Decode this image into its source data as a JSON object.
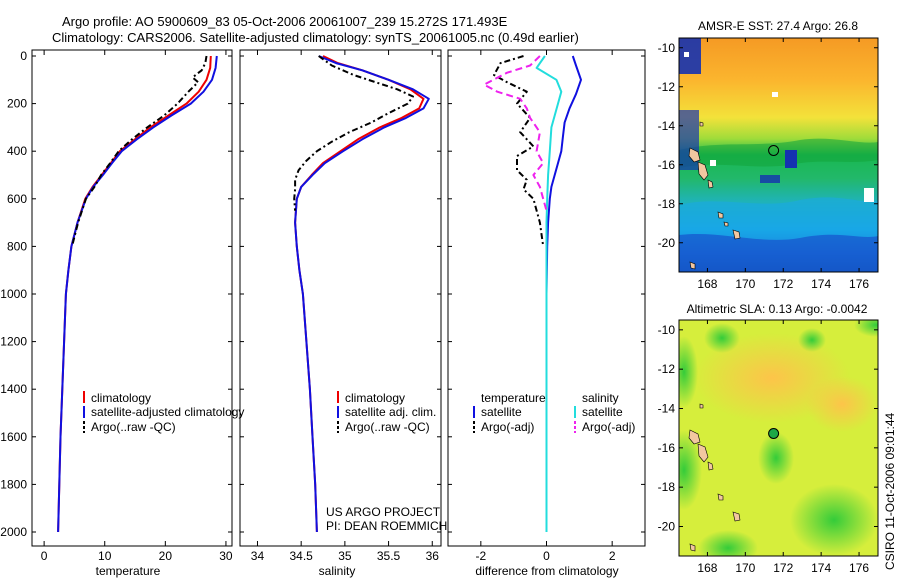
{
  "titles": {
    "line1": "Argo profile: AO 5900609_83 05-Oct-2006 20061007_239 15.272S 171.493E",
    "line2": "Climatology: CARS2006. Satellite-adjusted climatology: synTS_20061005.nc (0.49d earlier)"
  },
  "side_label": "CSIRO 11-Oct-2006 09:01:44",
  "project": {
    "line1": "US ARGO PROJECT",
    "line2": "PI: DEAN ROEMMICH"
  },
  "colors": {
    "red": "#ee0000",
    "blue": "#1010e0",
    "black": "#000000",
    "cyan": "#22dddd",
    "magenta": "#ee22ee"
  },
  "profiles": {
    "depth_ticks": [
      "0",
      "200",
      "400",
      "600",
      "800",
      "1000",
      "1200",
      "1400",
      "1600",
      "1800",
      "2000"
    ],
    "temperature": {
      "xlabel": "temperature",
      "xlim": [
        -2,
        31
      ],
      "xticks": [
        "0",
        "10",
        "20",
        "30"
      ],
      "legend": [
        "climatology",
        "satellite-adjusted climatology",
        "Argo(..raw -QC)"
      ],
      "series": [
        {
          "name": "climatology",
          "color": "#ee0000",
          "dash": "",
          "points": [
            [
              27.5,
              0
            ],
            [
              27.4,
              50
            ],
            [
              26.8,
              100
            ],
            [
              25.5,
              150
            ],
            [
              23.5,
              200
            ],
            [
              20.5,
              250
            ],
            [
              17.5,
              300
            ],
            [
              15,
              350
            ],
            [
              12.5,
              400
            ],
            [
              11,
              450
            ],
            [
              9.5,
              500
            ],
            [
              8,
              550
            ],
            [
              6.8,
              600
            ],
            [
              5.5,
              700
            ],
            [
              4.5,
              800
            ],
            [
              4,
              900
            ],
            [
              3.6,
              1000
            ],
            [
              3.3,
              1200
            ],
            [
              3,
              1400
            ],
            [
              2.7,
              1600
            ],
            [
              2.5,
              1800
            ],
            [
              2.3,
              2000
            ]
          ]
        },
        {
          "name": "satellite",
          "color": "#1010e0",
          "dash": "",
          "points": [
            [
              28.5,
              0
            ],
            [
              28.3,
              50
            ],
            [
              27.7,
              100
            ],
            [
              26.3,
              150
            ],
            [
              24.2,
              200
            ],
            [
              21,
              250
            ],
            [
              18,
              300
            ],
            [
              15.3,
              350
            ],
            [
              12.8,
              400
            ],
            [
              11.2,
              450
            ],
            [
              9.7,
              500
            ],
            [
              8.1,
              550
            ],
            [
              6.9,
              600
            ],
            [
              5.5,
              700
            ],
            [
              4.5,
              800
            ],
            [
              4,
              900
            ],
            [
              3.6,
              1000
            ],
            [
              3.3,
              1200
            ],
            [
              3,
              1400
            ],
            [
              2.7,
              1600
            ],
            [
              2.5,
              1800
            ],
            [
              2.3,
              2000
            ]
          ]
        },
        {
          "name": "argo",
          "color": "#000000",
          "dash": "6,3,2,3",
          "points": [
            [
              26.8,
              0
            ],
            [
              26.6,
              30
            ],
            [
              26,
              60
            ],
            [
              24.5,
              90
            ],
            [
              25.4,
              110
            ],
            [
              23.8,
              150
            ],
            [
              22,
              200
            ],
            [
              19.8,
              250
            ],
            [
              17,
              300
            ],
            [
              14.5,
              350
            ],
            [
              12.3,
              400
            ],
            [
              10.9,
              450
            ],
            [
              9.4,
              500
            ],
            [
              8.3,
              550
            ],
            [
              6.9,
              600
            ],
            [
              5.6,
              700
            ],
            [
              4.6,
              800
            ]
          ]
        }
      ]
    },
    "salinity": {
      "xlabel": "salinity",
      "xlim": [
        33.8,
        36.1
      ],
      "xticks": [
        "34",
        "34.5",
        "35",
        "35.5",
        "36"
      ],
      "legend": [
        "climatology",
        "satellite adj. clim.",
        "Argo(..raw -QC)"
      ],
      "series": [
        {
          "name": "climatology",
          "color": "#ee0000",
          "dash": "",
          "points": [
            [
              34.75,
              0
            ],
            [
              34.92,
              30
            ],
            [
              35.2,
              60
            ],
            [
              35.5,
              100
            ],
            [
              35.75,
              140
            ],
            [
              35.9,
              180
            ],
            [
              35.85,
              220
            ],
            [
              35.65,
              260
            ],
            [
              35.4,
              300
            ],
            [
              35.15,
              350
            ],
            [
              34.95,
              400
            ],
            [
              34.75,
              450
            ],
            [
              34.62,
              500
            ],
            [
              34.5,
              550
            ],
            [
              34.45,
              600
            ],
            [
              34.43,
              700
            ],
            [
              34.45,
              800
            ],
            [
              34.48,
              900
            ],
            [
              34.52,
              1000
            ],
            [
              34.56,
              1200
            ],
            [
              34.6,
              1400
            ],
            [
              34.63,
              1600
            ],
            [
              34.66,
              1800
            ],
            [
              34.68,
              2000
            ]
          ]
        },
        {
          "name": "satellite",
          "color": "#1010e0",
          "dash": "",
          "points": [
            [
              34.7,
              0
            ],
            [
              34.9,
              30
            ],
            [
              35.2,
              60
            ],
            [
              35.5,
              100
            ],
            [
              35.78,
              140
            ],
            [
              35.96,
              180
            ],
            [
              35.9,
              220
            ],
            [
              35.7,
              260
            ],
            [
              35.45,
              300
            ],
            [
              35.2,
              350
            ],
            [
              34.98,
              400
            ],
            [
              34.77,
              450
            ],
            [
              34.63,
              500
            ],
            [
              34.5,
              550
            ],
            [
              34.45,
              600
            ],
            [
              34.43,
              700
            ],
            [
              34.45,
              800
            ],
            [
              34.48,
              900
            ],
            [
              34.52,
              1000
            ],
            [
              34.56,
              1200
            ],
            [
              34.6,
              1400
            ],
            [
              34.63,
              1600
            ],
            [
              34.66,
              1800
            ],
            [
              34.68,
              2000
            ]
          ]
        },
        {
          "name": "argo",
          "color": "#000000",
          "dash": "6,3,2,3",
          "points": [
            [
              34.7,
              0
            ],
            [
              34.85,
              40
            ],
            [
              35.1,
              80
            ],
            [
              35.35,
              110
            ],
            [
              35.6,
              140
            ],
            [
              35.78,
              170
            ],
            [
              35.72,
              200
            ],
            [
              35.5,
              240
            ],
            [
              35.3,
              280
            ],
            [
              35.05,
              320
            ],
            [
              34.85,
              360
            ],
            [
              34.68,
              400
            ],
            [
              34.56,
              440
            ],
            [
              34.47,
              480
            ],
            [
              34.43,
              520
            ],
            [
              34.43,
              560
            ],
            [
              34.42,
              600
            ],
            [
              34.43,
              650
            ]
          ]
        }
      ]
    },
    "difference": {
      "xlabel": "difference from climatology",
      "xlim": [
        -3,
        3
      ],
      "xticks": [
        "-2",
        "0",
        "2"
      ],
      "legend_left": [
        "temperature",
        "satellite",
        "Argo(-adj)"
      ],
      "legend_right": [
        "salinity",
        "satellite",
        "Argo(-adj)"
      ],
      "series": [
        {
          "name": "temperature satellite",
          "color": "#1010e0",
          "dash": "",
          "points": [
            [
              0.8,
              0
            ],
            [
              0.9,
              40
            ],
            [
              1.05,
              100
            ],
            [
              0.9,
              160
            ],
            [
              0.7,
              220
            ],
            [
              0.55,
              280
            ],
            [
              0.5,
              340
            ],
            [
              0.45,
              400
            ],
            [
              0.35,
              450
            ],
            [
              0.25,
              500
            ],
            [
              0.15,
              550
            ],
            [
              0.1,
              600
            ],
            [
              0.05,
              700
            ],
            [
              0.02,
              800
            ],
            [
              0,
              1000
            ],
            [
              0,
              2000
            ]
          ]
        },
        {
          "name": "salinity satellite",
          "color": "#22dddd",
          "dash": "",
          "points": [
            [
              -0.05,
              0
            ],
            [
              -0.3,
              50
            ],
            [
              0.3,
              100
            ],
            [
              0.45,
              150
            ],
            [
              0.35,
              200
            ],
            [
              0.25,
              250
            ],
            [
              0.15,
              300
            ],
            [
              0.1,
              400
            ],
            [
              0.05,
              500
            ],
            [
              0.02,
              600
            ],
            [
              0,
              700
            ],
            [
              0,
              2000
            ]
          ]
        },
        {
          "name": "temperature Argo",
          "color": "#000000",
          "dash": "6,3,2,3",
          "points": [
            [
              -0.7,
              0
            ],
            [
              -1.4,
              30
            ],
            [
              -1.6,
              80
            ],
            [
              -1.2,
              110
            ],
            [
              -0.6,
              150
            ],
            [
              -0.9,
              200
            ],
            [
              -0.5,
              260
            ],
            [
              -0.8,
              320
            ],
            [
              -0.4,
              380
            ],
            [
              -0.9,
              420
            ],
            [
              -0.9,
              480
            ],
            [
              -0.6,
              520
            ],
            [
              -0.7,
              560
            ],
            [
              -0.4,
              600
            ],
            [
              -0.2,
              700
            ],
            [
              -0.1,
              800
            ]
          ]
        },
        {
          "name": "salinity Argo",
          "color": "#ee22ee",
          "dash": "7,4",
          "points": [
            [
              -0.2,
              0
            ],
            [
              -0.5,
              40
            ],
            [
              -1.2,
              70
            ],
            [
              -1.9,
              120
            ],
            [
              -1.5,
              150
            ],
            [
              -0.8,
              180
            ],
            [
              -0.6,
              220
            ],
            [
              -0.5,
              260
            ],
            [
              -0.2,
              320
            ],
            [
              -0.3,
              400
            ],
            [
              -0.1,
              450
            ],
            [
              -0.4,
              500
            ],
            [
              -0.2,
              550
            ],
            [
              -0.1,
              600
            ],
            [
              0,
              650
            ]
          ]
        }
      ]
    }
  },
  "maps": {
    "x_ticks": [
      "168",
      "170",
      "172",
      "174",
      "176"
    ],
    "y_ticks": [
      "-10",
      "-12",
      "-14",
      "-16",
      "-18",
      "-20"
    ],
    "lon_range": [
      166.5,
      177
    ],
    "lat_range": [
      -21.5,
      -9.5
    ],
    "float_position": {
      "lon": 171.49,
      "lat": -15.27
    },
    "sst": {
      "title": "AMSR-E SST: 27.4 Argo: 26.8"
    },
    "sla": {
      "title": "Altimetric SLA: 0.13 Argo: -0.0042"
    }
  }
}
